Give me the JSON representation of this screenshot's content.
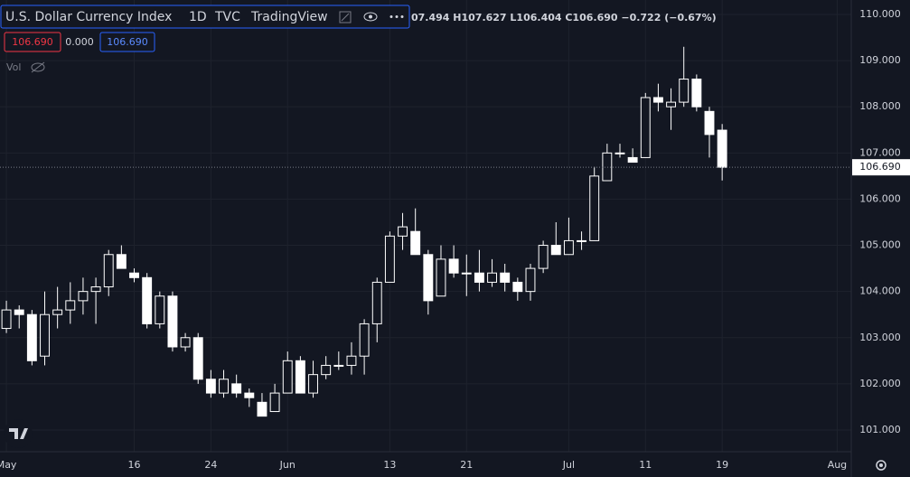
{
  "chart_data": {
    "type": "candlestick",
    "title": "U.S. Dollar Currency Index",
    "interval": "1D",
    "exchange": "TVC",
    "source": "TradingView",
    "ohlc_text": "07.494 H107.627 L106.404 C106.690 −0.722 (−0.67%)",
    "badges": [
      "106.690",
      "0.000",
      "106.690"
    ],
    "volume_label": "Vol",
    "color": "#ffffff",
    "hollow_up": true,
    "grid": true,
    "open": [
      103.2,
      103.6,
      103.5,
      102.6,
      103.5,
      103.6,
      103.8,
      104.0,
      104.1,
      104.8,
      104.4,
      104.3,
      103.3,
      103.9,
      102.8,
      103.0,
      102.1,
      101.8,
      102.0,
      101.8,
      101.6,
      101.4,
      101.8,
      102.5,
      101.8,
      102.2,
      102.4,
      102.4,
      102.6,
      103.3,
      104.2,
      105.2,
      105.3,
      104.8,
      103.9,
      104.7,
      104.4,
      104.4,
      104.2,
      104.4,
      104.2,
      104.0,
      104.5,
      105.0,
      104.8,
      105.1,
      105.1,
      106.4,
      107.0,
      106.9,
      106.9,
      108.2,
      108.0,
      108.1,
      108.6,
      107.9,
      107.494
    ],
    "high": [
      103.8,
      103.7,
      103.6,
      104.0,
      104.1,
      104.2,
      104.3,
      104.3,
      104.9,
      105.0,
      104.5,
      104.4,
      104.0,
      104.0,
      103.1,
      103.1,
      102.3,
      102.3,
      102.2,
      101.9,
      101.8,
      102.0,
      102.7,
      102.6,
      102.5,
      102.6,
      102.7,
      102.9,
      103.4,
      104.3,
      105.3,
      105.7,
      105.8,
      104.9,
      105.0,
      105.0,
      104.8,
      104.9,
      104.7,
      104.6,
      104.3,
      104.6,
      105.1,
      105.5,
      105.6,
      105.3,
      106.7,
      107.2,
      107.2,
      107.1,
      108.3,
      108.5,
      108.4,
      109.3,
      108.7,
      108.0,
      107.627
    ],
    "low": [
      103.1,
      103.2,
      102.4,
      102.4,
      103.2,
      103.3,
      103.5,
      103.3,
      103.9,
      104.5,
      104.2,
      103.2,
      103.2,
      102.7,
      102.7,
      102.0,
      101.7,
      101.7,
      101.7,
      101.5,
      101.3,
      101.4,
      101.8,
      101.8,
      101.7,
      102.1,
      102.3,
      102.2,
      102.2,
      102.9,
      104.2,
      104.9,
      104.8,
      103.5,
      103.9,
      104.3,
      103.9,
      104.0,
      104.1,
      104.0,
      103.8,
      103.8,
      104.4,
      104.8,
      104.8,
      104.9,
      105.1,
      106.4,
      106.9,
      106.8,
      106.9,
      107.9,
      107.5,
      108.0,
      107.9,
      106.9,
      106.404
    ],
    "close": [
      103.6,
      103.5,
      102.5,
      103.5,
      103.6,
      103.8,
      104.0,
      104.1,
      104.8,
      104.5,
      104.3,
      103.3,
      103.9,
      102.8,
      103.0,
      102.1,
      101.8,
      102.1,
      101.8,
      101.7,
      101.3,
      101.8,
      102.5,
      101.8,
      102.2,
      102.4,
      102.4,
      102.6,
      103.3,
      104.2,
      105.2,
      105.4,
      104.8,
      103.8,
      104.7,
      104.4,
      104.4,
      104.2,
      104.4,
      104.2,
      104.0,
      104.5,
      105.0,
      104.8,
      105.1,
      105.1,
      106.5,
      107.0,
      107.0,
      106.8,
      108.2,
      108.1,
      108.1,
      108.6,
      108.0,
      107.4,
      106.69
    ],
    "last_price": {
      "value": 106.69,
      "label": "106.690"
    },
    "xlim": [
      -0.5,
      66.1
    ],
    "xticks": [
      {
        "value": 0,
        "label": "May"
      },
      {
        "value": 10,
        "label": "16"
      },
      {
        "value": 16,
        "label": "24"
      },
      {
        "value": 22,
        "label": "Jun"
      },
      {
        "value": 30,
        "label": "13"
      },
      {
        "value": 36,
        "label": "21"
      },
      {
        "value": 44,
        "label": "Jul"
      },
      {
        "value": 50,
        "label": "11"
      },
      {
        "value": 56,
        "label": "19"
      },
      {
        "value": 65,
        "label": "Aug"
      }
    ],
    "ylim": [
      100.53,
      110.313
    ],
    "yticks": [
      {
        "value": 101,
        "label": "101.000"
      },
      {
        "value": 102,
        "label": "102.000"
      },
      {
        "value": 103,
        "label": "103.000"
      },
      {
        "value": 104,
        "label": "104.000"
      },
      {
        "value": 105,
        "label": "105.000"
      },
      {
        "value": 106,
        "label": "106.000"
      },
      {
        "value": 107,
        "label": "107.000"
      },
      {
        "value": 108,
        "label": "108.000"
      },
      {
        "value": 109,
        "label": "109.000"
      },
      {
        "value": 110,
        "label": "110.000"
      }
    ]
  }
}
